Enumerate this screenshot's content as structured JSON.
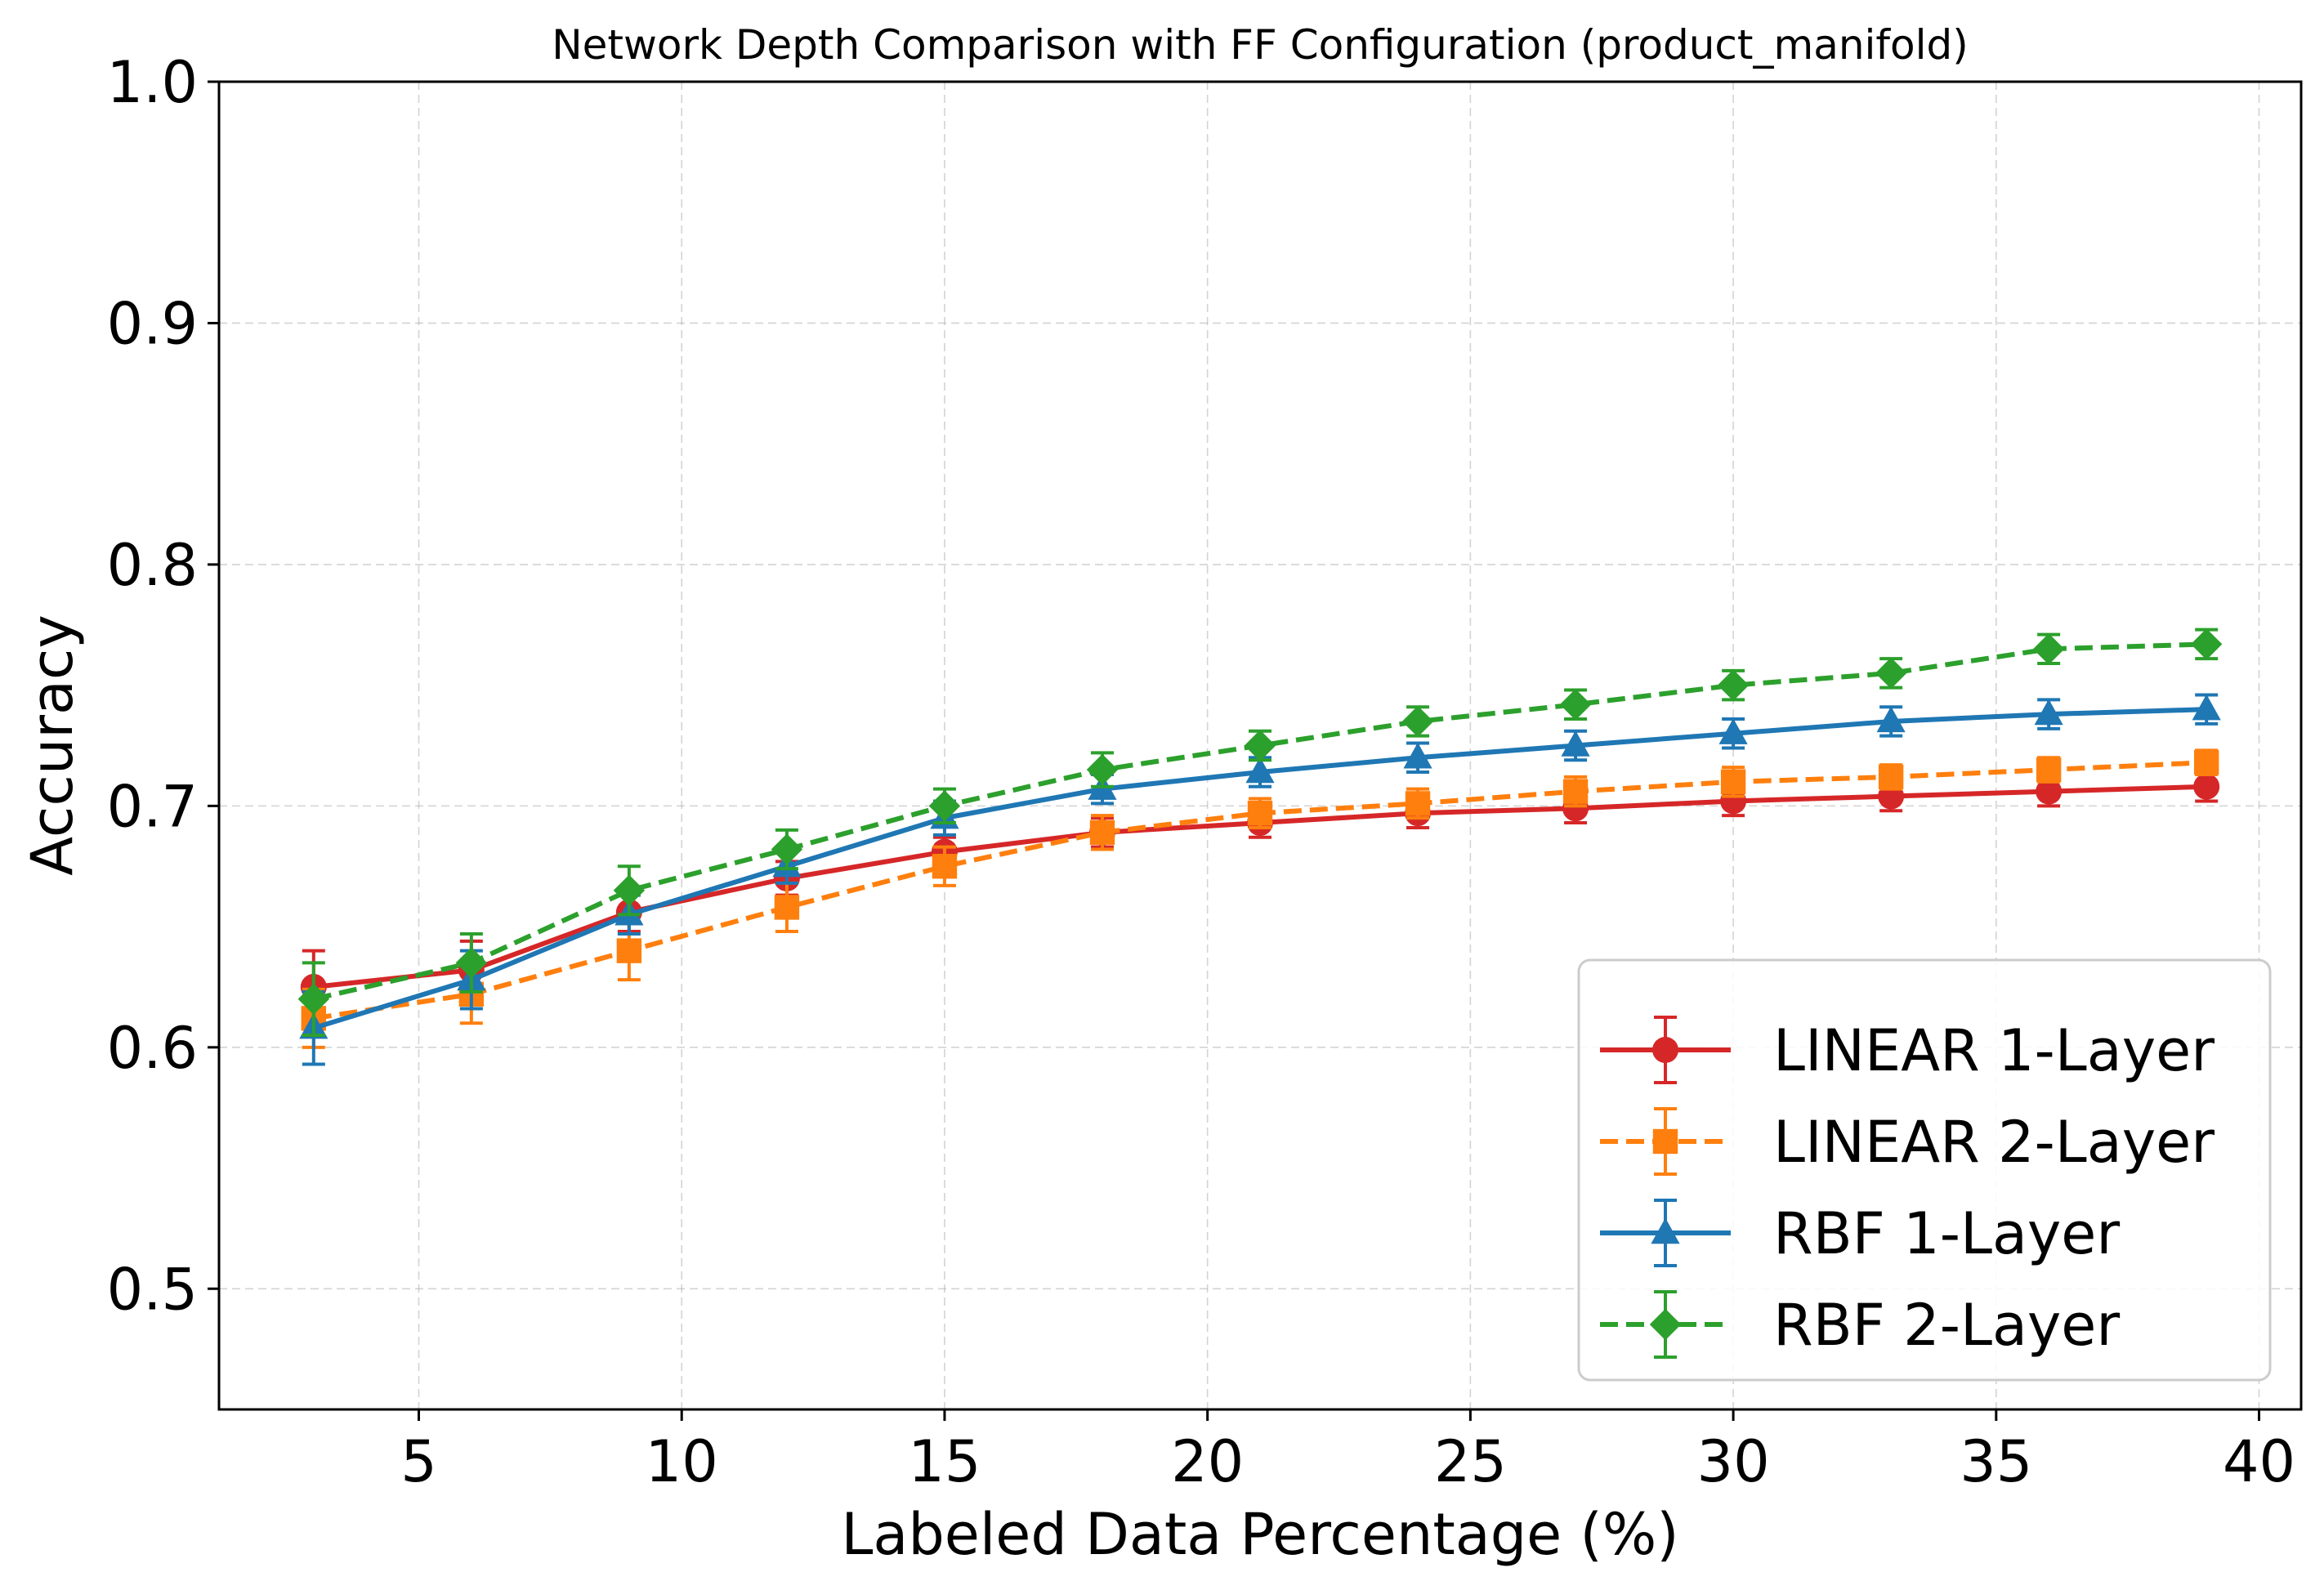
{
  "chart_data": {
    "type": "line",
    "title": "Network Depth Comparison with FF Configuration (product_manifold)",
    "xlabel": "Labeled Data Percentage (%)",
    "ylabel": "Accuracy",
    "xlim": [
      1.2,
      40.8
    ],
    "ylim": [
      0.45,
      1.0
    ],
    "xticks": [
      5,
      10,
      15,
      20,
      25,
      30,
      35,
      40
    ],
    "yticks": [
      0.5,
      0.6,
      0.7,
      0.8,
      0.9,
      1.0
    ],
    "xtick_labels": [
      "5",
      "10",
      "15",
      "20",
      "25",
      "30",
      "35",
      "40"
    ],
    "ytick_labels": [
      "0.5",
      "0.6",
      "0.7",
      "0.8",
      "0.9",
      "1.0"
    ],
    "grid": true,
    "legend_position": "bottom-right",
    "x": [
      3,
      6,
      9,
      12,
      15,
      18,
      21,
      24,
      27,
      30,
      33,
      36,
      39
    ],
    "series": [
      {
        "name": "LINEAR 1-Layer",
        "color": "#d62728",
        "marker": "circle",
        "dashed": false,
        "values": [
          0.625,
          0.632,
          0.656,
          0.67,
          0.681,
          0.689,
          0.693,
          0.697,
          0.699,
          0.702,
          0.704,
          0.706,
          0.708
        ],
        "errors": [
          0.015,
          0.012,
          0.008,
          0.007,
          0.006,
          0.006,
          0.006,
          0.006,
          0.006,
          0.006,
          0.006,
          0.006,
          0.006
        ]
      },
      {
        "name": "LINEAR 2-Layer",
        "color": "#ff7f0e",
        "marker": "square",
        "dashed": true,
        "values": [
          0.612,
          0.622,
          0.64,
          0.658,
          0.675,
          0.689,
          0.697,
          0.701,
          0.706,
          0.71,
          0.712,
          0.715,
          0.718
        ],
        "errors": [
          0.012,
          0.012,
          0.012,
          0.01,
          0.008,
          0.007,
          0.006,
          0.006,
          0.006,
          0.006,
          0.005,
          0.005,
          0.005
        ]
      },
      {
        "name": "RBF 1-Layer",
        "color": "#1f77b4",
        "marker": "triangle",
        "dashed": false,
        "values": [
          0.608,
          0.628,
          0.655,
          0.675,
          0.695,
          0.707,
          0.714,
          0.72,
          0.725,
          0.73,
          0.735,
          0.738,
          0.74
        ],
        "errors": [
          0.015,
          0.012,
          0.008,
          0.007,
          0.007,
          0.006,
          0.006,
          0.006,
          0.006,
          0.006,
          0.006,
          0.006,
          0.006
        ]
      },
      {
        "name": "RBF 2-Layer",
        "color": "#2ca02c",
        "marker": "diamond",
        "dashed": true,
        "values": [
          0.62,
          0.635,
          0.665,
          0.682,
          0.7,
          0.715,
          0.725,
          0.735,
          0.742,
          0.75,
          0.755,
          0.765,
          0.767
        ],
        "errors": [
          0.015,
          0.012,
          0.01,
          0.008,
          0.007,
          0.007,
          0.006,
          0.006,
          0.006,
          0.006,
          0.006,
          0.006,
          0.006
        ]
      }
    ]
  }
}
